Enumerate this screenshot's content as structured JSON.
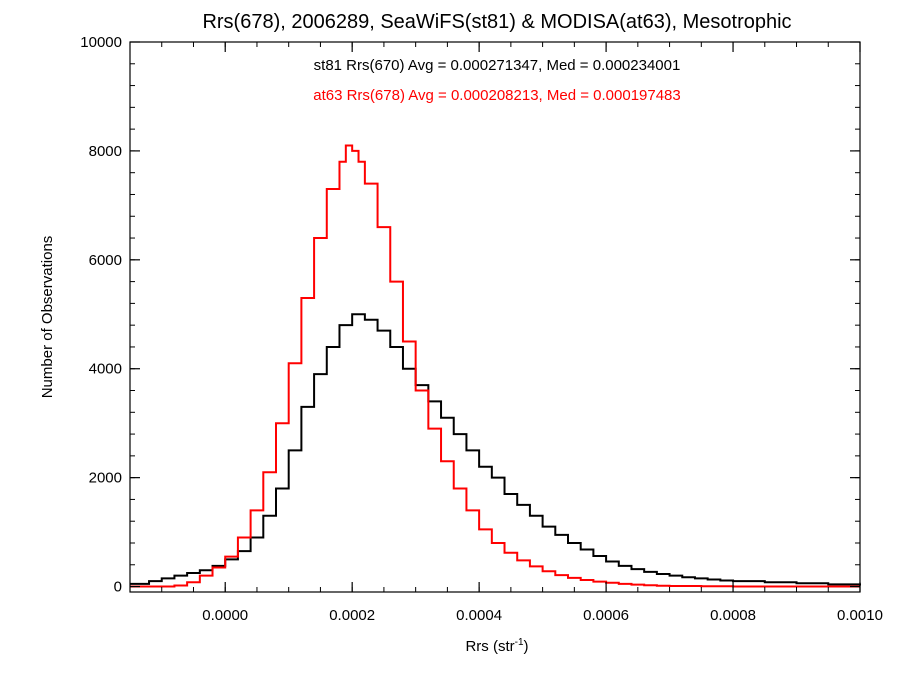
{
  "chart_data": {
    "type": "line",
    "title": "Rrs(678), 2006289, SeaWiFS(st81) & MODISA(at63), Mesotrophic",
    "xlabel": {
      "base": "Rrs (str",
      "sup": "-1",
      "end": ")"
    },
    "ylabel": "Number of Observations",
    "xlim": [
      -0.00015,
      0.001
    ],
    "ylim": [
      -100,
      10000
    ],
    "x_ticks": [
      0.0,
      0.0002,
      0.0004,
      0.0006,
      0.0008,
      0.001
    ],
    "x_tick_labels": [
      "0.0000",
      "0.0002",
      "0.0004",
      "0.0006",
      "0.0008",
      "0.0010"
    ],
    "y_ticks": [
      0,
      2000,
      4000,
      6000,
      8000,
      10000
    ],
    "y_tick_labels": [
      "0",
      "2000",
      "4000",
      "6000",
      "8000",
      "10000"
    ],
    "annotations": [
      {
        "text": "st81 Rrs(670) Avg = 0.000271347, Med = 0.000234001",
        "color": "#000000"
      },
      {
        "text": "at63 Rrs(678) Avg = 0.000208213, Med = 0.000197483",
        "color": "#ff0000"
      }
    ],
    "series": [
      {
        "color": "#000000",
        "points": [
          [
            -0.00015,
            50
          ],
          [
            -0.00012,
            100
          ],
          [
            -0.0001,
            150
          ],
          [
            -8e-05,
            200
          ],
          [
            -6e-05,
            250
          ],
          [
            -4e-05,
            300
          ],
          [
            -2e-05,
            380
          ],
          [
            0.0,
            500
          ],
          [
            2e-05,
            650
          ],
          [
            4e-05,
            900
          ],
          [
            6e-05,
            1300
          ],
          [
            8e-05,
            1800
          ],
          [
            0.0001,
            2500
          ],
          [
            0.00012,
            3300
          ],
          [
            0.00014,
            3900
          ],
          [
            0.00016,
            4400
          ],
          [
            0.00018,
            4800
          ],
          [
            0.0002,
            5000
          ],
          [
            0.00022,
            4900
          ],
          [
            0.00024,
            4700
          ],
          [
            0.00026,
            4400
          ],
          [
            0.00028,
            4000
          ],
          [
            0.0003,
            3700
          ],
          [
            0.00032,
            3400
          ],
          [
            0.00034,
            3100
          ],
          [
            0.00036,
            2800
          ],
          [
            0.00038,
            2500
          ],
          [
            0.0004,
            2200
          ],
          [
            0.00042,
            2000
          ],
          [
            0.00044,
            1700
          ],
          [
            0.00046,
            1500
          ],
          [
            0.00048,
            1300
          ],
          [
            0.0005,
            1100
          ],
          [
            0.00052,
            950
          ],
          [
            0.00054,
            800
          ],
          [
            0.00056,
            680
          ],
          [
            0.00058,
            560
          ],
          [
            0.0006,
            460
          ],
          [
            0.00062,
            380
          ],
          [
            0.00064,
            320
          ],
          [
            0.00066,
            270
          ],
          [
            0.00068,
            230
          ],
          [
            0.0007,
            200
          ],
          [
            0.00072,
            170
          ],
          [
            0.00074,
            150
          ],
          [
            0.00076,
            130
          ],
          [
            0.00078,
            110
          ],
          [
            0.0008,
            100
          ],
          [
            0.00085,
            80
          ],
          [
            0.0009,
            60
          ],
          [
            0.00095,
            40
          ],
          [
            0.001,
            20
          ]
        ]
      },
      {
        "color": "#ff0000",
        "points": [
          [
            -0.00015,
            0
          ],
          [
            -0.0001,
            0
          ],
          [
            -8e-05,
            20
          ],
          [
            -6e-05,
            80
          ],
          [
            -4e-05,
            200
          ],
          [
            -2e-05,
            350
          ],
          [
            0.0,
            550
          ],
          [
            2e-05,
            900
          ],
          [
            4e-05,
            1400
          ],
          [
            6e-05,
            2100
          ],
          [
            8e-05,
            3000
          ],
          [
            0.0001,
            4100
          ],
          [
            0.00012,
            5300
          ],
          [
            0.00014,
            6400
          ],
          [
            0.00016,
            7300
          ],
          [
            0.00018,
            7800
          ],
          [
            0.00019,
            8100
          ],
          [
            0.0002,
            8000
          ],
          [
            0.00021,
            7800
          ],
          [
            0.00022,
            7400
          ],
          [
            0.00024,
            6600
          ],
          [
            0.00026,
            5600
          ],
          [
            0.00028,
            4500
          ],
          [
            0.0003,
            3600
          ],
          [
            0.00032,
            2900
          ],
          [
            0.00034,
            2300
          ],
          [
            0.00036,
            1800
          ],
          [
            0.00038,
            1400
          ],
          [
            0.0004,
            1050
          ],
          [
            0.00042,
            800
          ],
          [
            0.00044,
            620
          ],
          [
            0.00046,
            480
          ],
          [
            0.00048,
            370
          ],
          [
            0.0005,
            280
          ],
          [
            0.00052,
            210
          ],
          [
            0.00054,
            160
          ],
          [
            0.00056,
            120
          ],
          [
            0.00058,
            90
          ],
          [
            0.0006,
            70
          ],
          [
            0.00062,
            50
          ],
          [
            0.00064,
            35
          ],
          [
            0.00066,
            25
          ],
          [
            0.00068,
            15
          ],
          [
            0.0007,
            10
          ],
          [
            0.00075,
            5
          ],
          [
            0.0008,
            0
          ],
          [
            0.001,
            0
          ]
        ]
      }
    ]
  }
}
